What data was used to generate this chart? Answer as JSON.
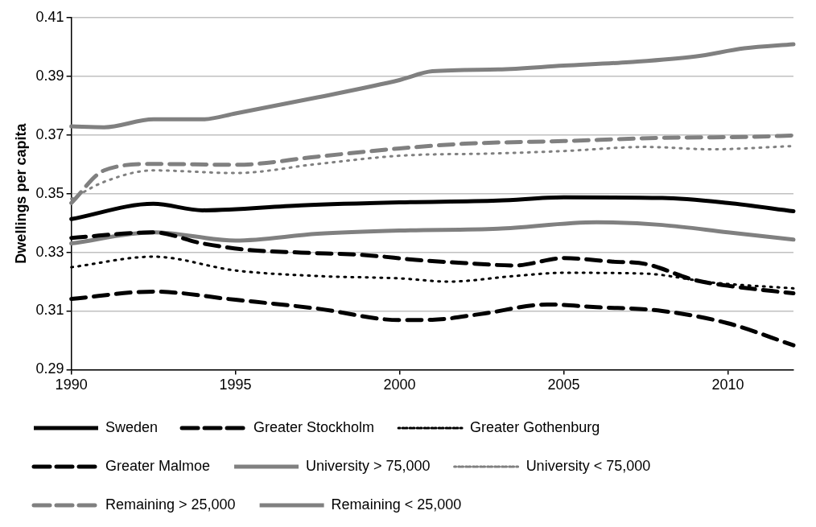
{
  "chart_data": {
    "type": "line",
    "ylabel": "Dwellings per capita",
    "xlim": [
      1990,
      2012
    ],
    "xticks": [
      1990,
      1995,
      2000,
      2005,
      2010
    ],
    "ylim": [
      0.29,
      0.41
    ],
    "yticks": [
      0.29,
      0.31,
      0.33,
      0.35,
      0.37,
      0.39,
      0.41
    ],
    "grid": "y",
    "legend": "bottom",
    "marker": "none",
    "series": [
      {
        "name": "Sweden",
        "color": "#000000",
        "line_style": "solid",
        "x": [
          1990,
          1992.5,
          1994,
          1997,
          2000,
          2003,
          2005,
          2008,
          2010,
          2012
        ],
        "values": [
          0.3413,
          0.3465,
          0.3443,
          0.346,
          0.347,
          0.3476,
          0.3487,
          0.3485,
          0.3468,
          0.344
        ]
      },
      {
        "name": "Greater Stockholm",
        "color": "#000000",
        "line_style": "dashed",
        "x": [
          1990,
          1992.5,
          1995,
          1997.5,
          2000,
          2001,
          2002.5,
          2004.5,
          2006,
          2008,
          2010,
          2012
        ],
        "values": [
          0.3141,
          0.3166,
          0.3138,
          0.3108,
          0.3069,
          0.307,
          0.309,
          0.3122,
          0.3113,
          0.31,
          0.3058,
          0.2983
        ]
      },
      {
        "name": "Greater Gothenburg",
        "color": "#000000",
        "line_style": "dotted",
        "x": [
          1990,
          1992.5,
          1995,
          1997.5,
          2000,
          2001.5,
          2003.5,
          2005,
          2007.5,
          2009.5,
          2012
        ],
        "values": [
          0.3249,
          0.3285,
          0.3238,
          0.3219,
          0.3211,
          0.32,
          0.3219,
          0.323,
          0.3227,
          0.3197,
          0.3177
        ]
      },
      {
        "name": "Greater Malmoe",
        "color": "#000000",
        "line_style": "dashed",
        "x": [
          1990,
          1992.5,
          1994,
          1995.5,
          1997,
          1999,
          2000.5,
          2002,
          2003.5,
          2005,
          2006.5,
          2007.5,
          2009,
          2010,
          2012
        ],
        "values": [
          0.3349,
          0.3368,
          0.333,
          0.3307,
          0.3299,
          0.329,
          0.3274,
          0.3263,
          0.3255,
          0.328,
          0.3268,
          0.326,
          0.3205,
          0.3186,
          0.316
        ]
      },
      {
        "name": "University > 75,000",
        "color": "#808080",
        "line_style": "solid",
        "x": [
          1990,
          1992.5,
          1995,
          1997.5,
          2000,
          2003,
          2006,
          2008,
          2010,
          2012
        ],
        "values": [
          0.333,
          0.3368,
          0.334,
          0.3363,
          0.3374,
          0.338,
          0.3402,
          0.3393,
          0.3368,
          0.3343
        ]
      },
      {
        "name": "University < 75,000",
        "color": "#808080",
        "line_style": "dotted",
        "x": [
          1990,
          1991,
          1992.5,
          1995,
          1997.5,
          2000,
          2003,
          2005,
          2007.5,
          2009.5,
          2012
        ],
        "values": [
          0.3482,
          0.354,
          0.3579,
          0.357,
          0.3601,
          0.3629,
          0.3637,
          0.3645,
          0.3659,
          0.3651,
          0.3662
        ]
      },
      {
        "name": "Remaining > 25,000",
        "color": "#808080",
        "line_style": "dashed",
        "x": [
          1990,
          1991,
          1992.5,
          1995,
          1997.5,
          2000,
          2002,
          2005,
          2008,
          2010.5,
          2012
        ],
        "values": [
          0.3468,
          0.3579,
          0.3601,
          0.3598,
          0.3626,
          0.3654,
          0.367,
          0.3679,
          0.369,
          0.3693,
          0.3698
        ]
      },
      {
        "name": "Remaining < 25,000",
        "color": "#808080",
        "line_style": "solid",
        "x": [
          1990,
          1991,
          1992.5,
          1994,
          1995,
          1997.5,
          2000,
          2001,
          2003,
          2005,
          2007,
          2009,
          2010.5,
          2012
        ],
        "values": [
          0.3729,
          0.3726,
          0.3753,
          0.3753,
          0.3773,
          0.3828,
          0.3887,
          0.3917,
          0.3923,
          0.3936,
          0.3948,
          0.3967,
          0.3995,
          0.4009
        ]
      }
    ]
  }
}
